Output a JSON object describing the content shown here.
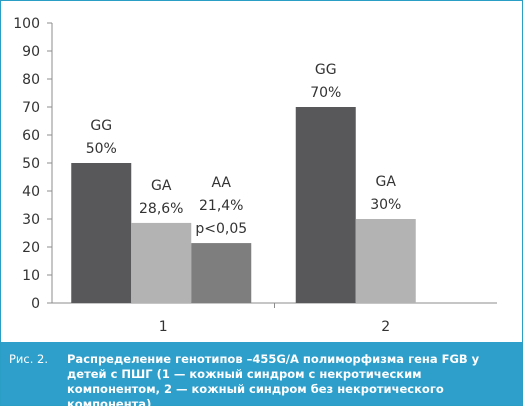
{
  "chart_data": {
    "type": "bar",
    "categories": [
      "1",
      "2"
    ],
    "ylim": [
      0,
      100
    ],
    "yticks": [
      0,
      10,
      20,
      30,
      40,
      50,
      60,
      70,
      80,
      90,
      100
    ],
    "grid": false,
    "bars": [
      {
        "category": "1",
        "genotype": "GG",
        "value": 50,
        "label": [
          "GG",
          "50%"
        ],
        "color": "#58585a"
      },
      {
        "category": "1",
        "genotype": "GA",
        "value": 28.6,
        "label": [
          "GA",
          "28,6%"
        ],
        "color": "#b3b3b3"
      },
      {
        "category": "1",
        "genotype": "AA",
        "value": 21.4,
        "label": [
          "AA",
          "21,4%",
          "p<0,05"
        ],
        "color": "#7e7e7e"
      },
      {
        "category": "2",
        "genotype": "GG",
        "value": 70,
        "label": [
          "GG",
          "70%"
        ],
        "color": "#58585a"
      },
      {
        "category": "2",
        "genotype": "GA",
        "value": 30,
        "label": [
          "GA",
          "30%"
        ],
        "color": "#b3b3b3"
      }
    ]
  },
  "caption": {
    "prefix": "Рис. 2.",
    "text": "Распределение генотипов –455G/A полиморфизма гена FGB у детей с ПШГ (1 — кожный синдром с некротическим компонентом, 2 — кожный синдром без некротического компонента)"
  },
  "colors": {
    "caption_bg": "#2e9fcb",
    "frame": "#2b9ec6"
  }
}
